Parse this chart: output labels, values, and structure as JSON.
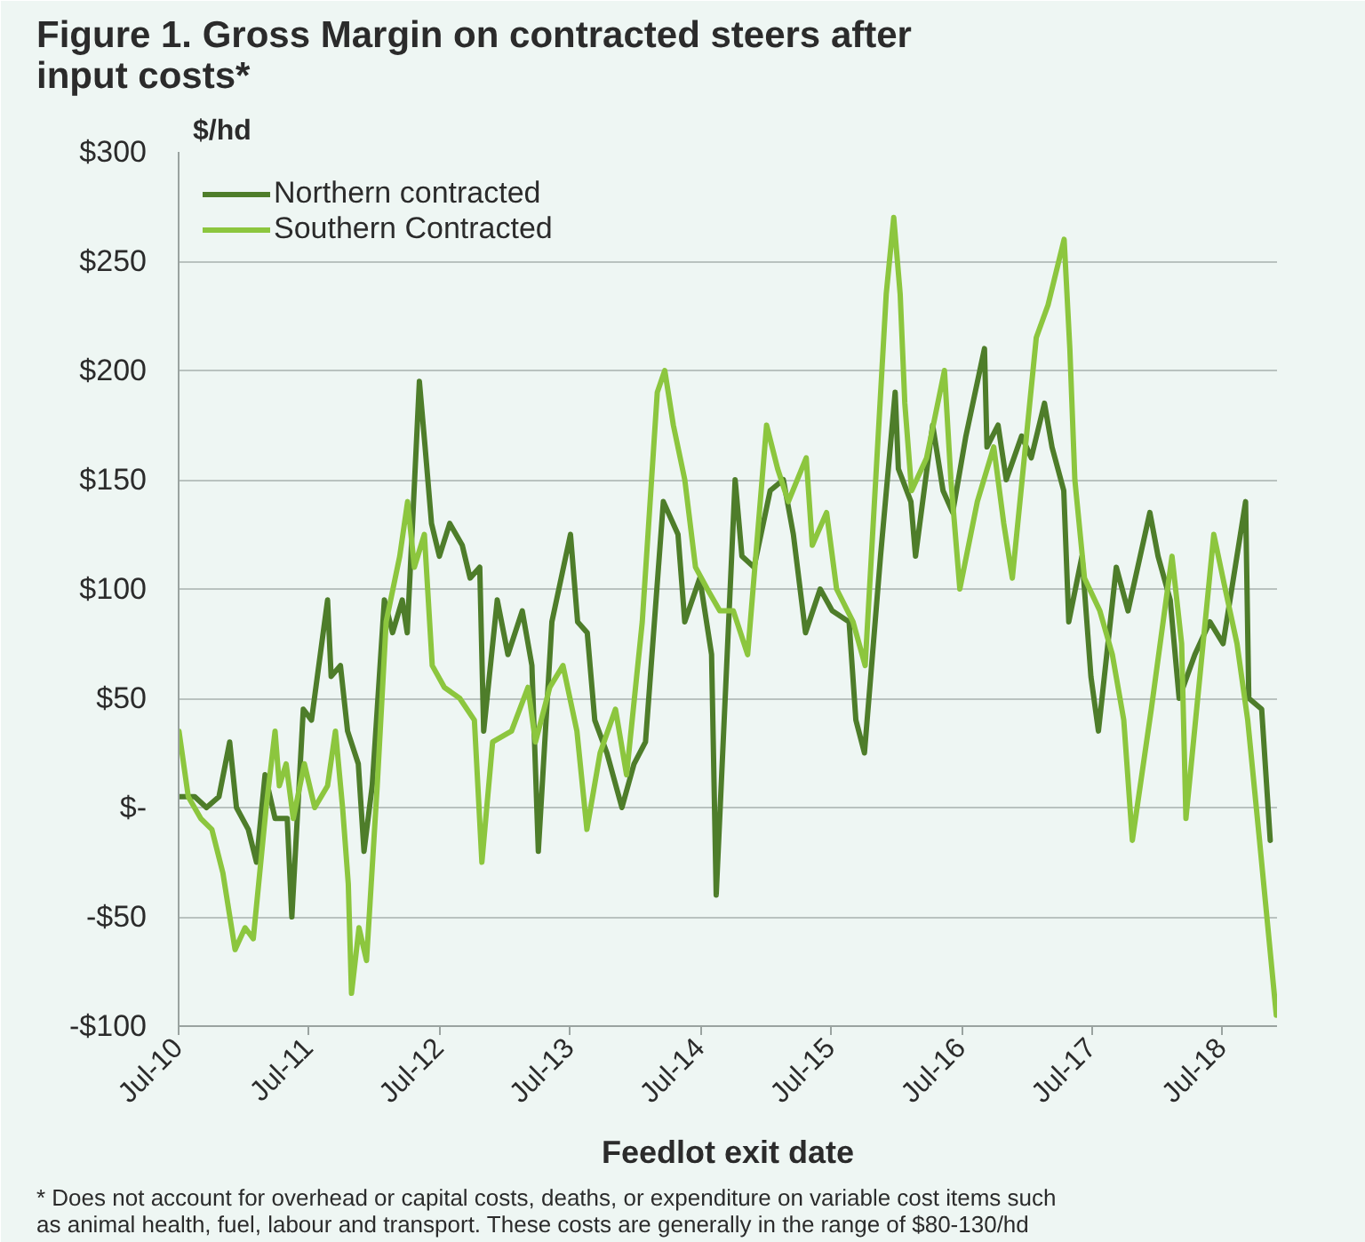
{
  "chart_data": {
    "type": "line",
    "title": "Figure 1. Gross Margin on contracted steers after input costs*",
    "ylabel": "$/hd",
    "xlabel": "Feedlot exit date",
    "annotations": [
      "* Does not account for overhead or capital costs, deaths, or expenditure on variable cost items such as animal health, fuel, labour and transport. These costs are generally in the range of $80-130/hd"
    ],
    "xlim": [
      "2010-07-01",
      "2018-12-01"
    ],
    "xticks": [
      {
        "value": "2010-07-01",
        "label": "Jul-10"
      },
      {
        "value": "2011-07-01",
        "label": "Jul-11"
      },
      {
        "value": "2012-07-01",
        "label": "Jul-12"
      },
      {
        "value": "2013-07-01",
        "label": "Jul-13"
      },
      {
        "value": "2014-07-01",
        "label": "Jul-14"
      },
      {
        "value": "2015-07-01",
        "label": "Jul-15"
      },
      {
        "value": "2016-07-01",
        "label": "Jul-16"
      },
      {
        "value": "2017-07-01",
        "label": "Jul-17"
      },
      {
        "value": "2018-07-01",
        "label": "Jul-18"
      }
    ],
    "ylim": [
      -100,
      300
    ],
    "yticks": [
      {
        "value": -100,
        "label": "-$100"
      },
      {
        "value": -50,
        "label": "-$50"
      },
      {
        "value": 0,
        "label": "$-"
      },
      {
        "value": 50,
        "label": "$50"
      },
      {
        "value": 100,
        "label": "$100"
      },
      {
        "value": 150,
        "label": "$150"
      },
      {
        "value": 200,
        "label": "$200"
      },
      {
        "value": 250,
        "label": "$250"
      },
      {
        "value": 300,
        "label": "$300"
      }
    ],
    "grid": "y",
    "legend": "top left",
    "marker": "none",
    "line_style": "solid",
    "series": [
      {
        "name": "Northern contracted",
        "color": "#4e7d2a",
        "x": [
          "2010-07-02",
          "2010-08-15",
          "2010-09-17",
          "2010-10-22",
          "2010-11-21",
          "2010-12-10",
          "2011-01-12",
          "2011-02-04",
          "2011-02-28",
          "2011-03-28",
          "2011-05-01",
          "2011-05-14",
          "2011-06-15",
          "2011-07-08",
          "2011-08-22",
          "2011-09-01",
          "2011-09-27",
          "2011-10-17",
          "2011-11-16",
          "2011-12-02",
          "2011-12-25",
          "2012-01-28",
          "2012-02-20",
          "2012-03-18",
          "2012-04-01",
          "2012-05-05",
          "2012-05-21",
          "2012-06-08",
          "2012-06-30",
          "2012-07-29",
          "2012-09-02",
          "2012-09-24",
          "2012-10-21",
          "2012-11-01",
          "2012-12-09",
          "2013-01-08",
          "2013-02-17",
          "2013-03-16",
          "2013-04-03",
          "2013-05-11",
          "2013-07-02",
          "2013-07-22",
          "2013-08-18",
          "2013-09-08",
          "2013-10-12",
          "2013-11-23",
          "2013-12-27",
          "2014-01-28",
          "2014-03-19",
          "2014-04-29",
          "2014-05-18",
          "2014-06-29",
          "2014-08-01",
          "2014-08-14",
          "2014-10-06",
          "2014-10-25",
          "2014-11-28",
          "2015-01-12",
          "2015-02-18",
          "2015-03-18",
          "2015-04-21",
          "2015-06-01",
          "2015-07-05",
          "2015-08-21",
          "2015-09-09",
          "2015-10-03",
          "2015-11-17",
          "2015-12-28",
          "2016-01-06",
          "2016-02-10",
          "2016-02-23",
          "2016-04-11",
          "2016-05-10",
          "2016-06-06",
          "2016-07-13",
          "2016-09-03",
          "2016-09-10",
          "2016-10-11",
          "2016-11-03",
          "2016-12-16",
          "2017-01-12",
          "2017-02-18",
          "2017-03-11",
          "2017-04-13",
          "2017-04-27",
          "2017-06-03",
          "2017-06-28",
          "2017-07-19",
          "2017-09-07",
          "2017-10-10",
          "2017-12-10",
          "2018-01-02",
          "2018-02-05",
          "2018-03-02",
          "2018-04-15",
          "2018-05-27",
          "2018-07-03",
          "2018-09-04",
          "2018-09-13",
          "2018-10-19",
          "2018-11-12"
        ],
        "values": [
          5,
          5,
          0,
          5,
          30,
          0,
          -10,
          -25,
          15,
          -5,
          -5,
          -50,
          45,
          40,
          95,
          60,
          65,
          35,
          20,
          -20,
          10,
          95,
          80,
          95,
          80,
          195,
          165,
          130,
          115,
          130,
          120,
          105,
          110,
          35,
          95,
          70,
          90,
          65,
          -20,
          85,
          125,
          85,
          80,
          40,
          25,
          0,
          20,
          30,
          140,
          125,
          85,
          105,
          70,
          -40,
          150,
          115,
          110,
          145,
          150,
          125,
          80,
          100,
          90,
          85,
          40,
          25,
          115,
          190,
          155,
          140,
          115,
          175,
          145,
          135,
          170,
          210,
          165,
          175,
          150,
          170,
          160,
          185,
          165,
          145,
          85,
          115,
          60,
          35,
          110,
          90,
          135,
          115,
          95,
          50,
          70,
          85,
          75,
          140,
          50,
          45,
          -15
        ]
      },
      {
        "name": "Southern Contracted",
        "color": "#8cc63e",
        "x": [
          "2010-07-02",
          "2010-07-28",
          "2010-09-01",
          "2010-10-02",
          "2010-11-02",
          "2010-12-06",
          "2011-01-03",
          "2011-01-26",
          "2011-03-03",
          "2011-03-28",
          "2011-04-09",
          "2011-04-28",
          "2011-05-18",
          "2011-06-18",
          "2011-07-17",
          "2011-08-22",
          "2011-09-13",
          "2011-10-03",
          "2011-10-19",
          "2011-10-28",
          "2011-11-18",
          "2011-12-09",
          "2012-01-08",
          "2012-02-02",
          "2012-03-11",
          "2012-04-02",
          "2012-04-21",
          "2012-05-19",
          "2012-06-10",
          "2012-07-14",
          "2012-08-26",
          "2012-10-06",
          "2012-10-27",
          "2012-11-26",
          "2013-01-18",
          "2013-03-05",
          "2013-03-26",
          "2013-05-05",
          "2013-06-11",
          "2013-07-20",
          "2013-08-17",
          "2013-09-23",
          "2013-11-05",
          "2013-12-06",
          "2014-01-19",
          "2014-03-02",
          "2014-03-23",
          "2014-04-16",
          "2014-05-18",
          "2014-06-17",
          "2014-07-20",
          "2014-08-24",
          "2014-10-01",
          "2014-11-10",
          "2015-01-02",
          "2015-02-02",
          "2015-03-04",
          "2015-04-23",
          "2015-05-10",
          "2015-06-19",
          "2015-07-17",
          "2015-09-01",
          "2015-10-05",
          "2015-12-03",
          "2015-12-24",
          "2016-01-11",
          "2016-01-24",
          "2016-02-12",
          "2016-03-25",
          "2016-05-14",
          "2016-06-01",
          "2016-06-26",
          "2016-08-14",
          "2016-09-29",
          "2016-10-27",
          "2016-11-20",
          "2017-01-26",
          "2017-02-28",
          "2017-04-14",
          "2017-04-30",
          "2017-05-14",
          "2017-06-10",
          "2017-07-23",
          "2017-08-27",
          "2017-09-28",
          "2017-10-22",
          "2017-12-14",
          "2018-02-10",
          "2018-03-09",
          "2018-03-21",
          "2018-06-07",
          "2018-07-09",
          "2018-08-11",
          "2018-09-10",
          "2018-10-13",
          "2018-11-29"
        ],
        "values": [
          35,
          5,
          -5,
          -10,
          -30,
          -65,
          -55,
          -60,
          0,
          35,
          10,
          20,
          -5,
          20,
          0,
          10,
          35,
          0,
          -35,
          -85,
          -55,
          -70,
          10,
          85,
          115,
          140,
          110,
          125,
          65,
          55,
          50,
          40,
          -25,
          30,
          35,
          55,
          30,
          55,
          65,
          35,
          -10,
          25,
          45,
          15,
          85,
          190,
          200,
          175,
          150,
          110,
          100,
          90,
          90,
          70,
          175,
          155,
          140,
          160,
          120,
          135,
          100,
          85,
          65,
          235,
          270,
          235,
          185,
          145,
          160,
          200,
          150,
          100,
          140,
          165,
          130,
          105,
          215,
          230,
          260,
          210,
          150,
          105,
          90,
          70,
          40,
          -15,
          45,
          115,
          75,
          -5,
          125,
          100,
          75,
          40,
          -15,
          -95
        ]
      }
    ]
  }
}
